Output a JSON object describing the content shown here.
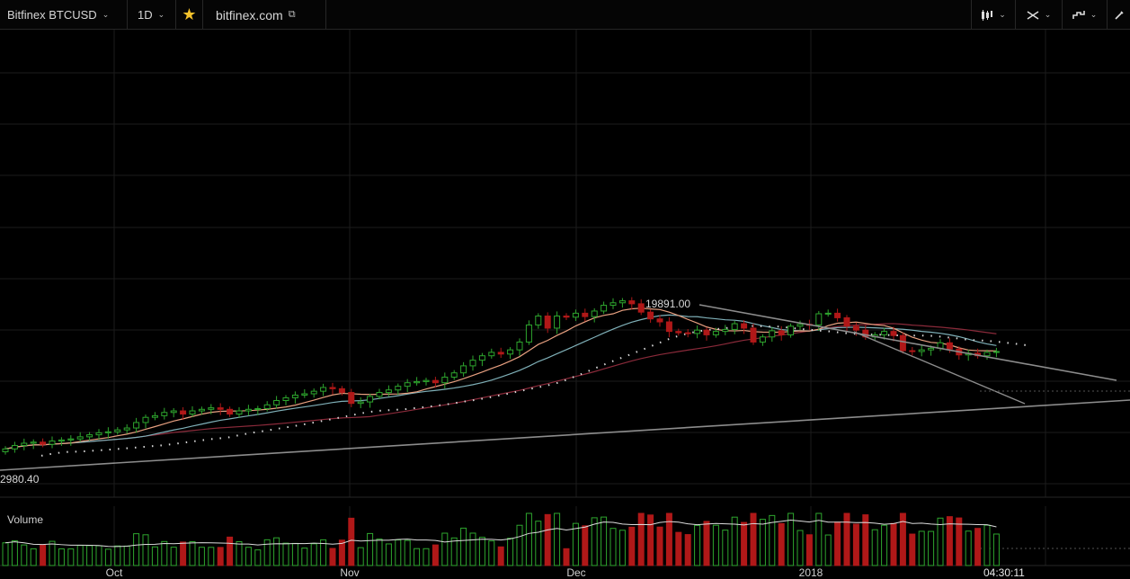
{
  "toolbar": {
    "symbol": "Bitfinex BTCUSD",
    "interval": "1D",
    "favorite_icon": "star-icon",
    "domain": "bitfinex.com",
    "tools": [
      "candlestick-style-icon",
      "crosshair-icon",
      "indicators-icon",
      "pencil-icon"
    ]
  },
  "colors": {
    "up": "#2ea62e",
    "down": "#b01818",
    "ma_fast": "#e8a080",
    "ma_mid": "#7fb0b8",
    "ma_slow": "#8a2a3a",
    "trendline": "#8c8c8c",
    "grid": "#1c1c1c"
  },
  "chart_data": {
    "type": "candlestick",
    "symbol": "Bitfinex BTCUSD",
    "interval": "1D",
    "xlabels": [
      "Oct",
      "Nov",
      "Dec",
      "2018"
    ],
    "highest_label": "19891.00",
    "lowest_label": "2980.40",
    "volume_label": "Volume",
    "time_label": "04:30:11",
    "grid": true,
    "log_scale": true,
    "closes": [
      4000,
      4150,
      4250,
      4300,
      4200,
      4350,
      4400,
      4450,
      4550,
      4650,
      4750,
      4800,
      4900,
      5000,
      5300,
      5600,
      5700,
      5900,
      6000,
      5800,
      6000,
      6100,
      6200,
      6100,
      5800,
      6000,
      6100,
      6150,
      6400,
      6700,
      6900,
      7100,
      7200,
      7400,
      7700,
      7600,
      7300,
      6500,
      6600,
      7000,
      7300,
      7500,
      7800,
      8100,
      8200,
      8300,
      8100,
      8600,
      9000,
      9700,
      10300,
      10800,
      11200,
      11000,
      11500,
      12500,
      15000,
      16500,
      14500,
      16500,
      16300,
      17000,
      16400,
      17400,
      18500,
      19000,
      19400,
      18800,
      17200,
      16000,
      15500,
      14000,
      13800,
      13700,
      14200,
      13500,
      14000,
      14300,
      15200,
      14500,
      12500,
      13200,
      14100,
      13500,
      14800,
      15100,
      15000,
      16900,
      17000,
      16200,
      14800,
      14200,
      13200,
      13500,
      14000,
      13400,
      11400,
      11300,
      11500,
      11700,
      12400,
      11600,
      10900,
      11100,
      10800,
      11200,
      11300
    ]
  }
}
